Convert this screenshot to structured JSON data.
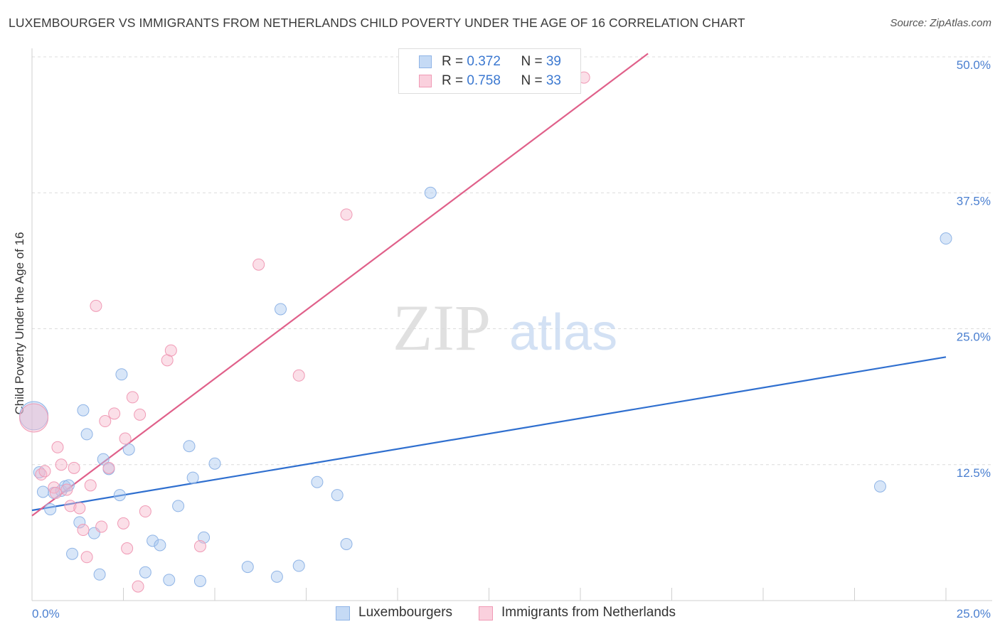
{
  "header": {
    "title": "LUXEMBOURGER VS IMMIGRANTS FROM NETHERLANDS CHILD POVERTY UNDER THE AGE OF 16 CORRELATION CHART",
    "source": "Source: ZipAtlas.com"
  },
  "watermark": {
    "zip": "ZIP",
    "atlas": "atlas"
  },
  "legend": {
    "r_label": "R = ",
    "n_label": "N = ",
    "rows": [
      {
        "r": "0.372",
        "n": "39",
        "color": "#a8c8f0"
      },
      {
        "r": "0.758",
        "n": "33",
        "color": "#f6b8cb"
      }
    ]
  },
  "bottom_legend": [
    {
      "label": "Luxembourgers",
      "color": "#a8c8f0"
    },
    {
      "label": "Immigrants from Netherlands",
      "color": "#f6b8cb"
    }
  ],
  "chart_data": {
    "type": "scatter",
    "title": "LUXEMBOURGER VS IMMIGRANTS FROM NETHERLANDS CHILD POVERTY UNDER THE AGE OF 16 CORRELATION CHART",
    "xlabel": "",
    "ylabel": "Child Poverty Under the Age of 16",
    "xlim": [
      0,
      25
    ],
    "ylim": [
      0,
      50
    ],
    "x_tick_labels": [
      "0.0%",
      "25.0%"
    ],
    "y_ticks": [
      12.5,
      25.0,
      37.5,
      50.0
    ],
    "y_tick_labels": [
      "12.5%",
      "25.0%",
      "37.5%",
      "50.0%"
    ],
    "grid": true,
    "legend_position": "top-center",
    "series": [
      {
        "name": "Luxembourgers",
        "color": "#a8c8f0",
        "line_color": "#2f6fcf",
        "r": 0.372,
        "n": 39,
        "trend": {
          "x": [
            0,
            25
          ],
          "y": [
            8.3,
            22.4
          ]
        },
        "points": [
          {
            "x": 0.05,
            "y": 17.0,
            "big": true
          },
          {
            "x": 0.2,
            "y": 11.8
          },
          {
            "x": 0.3,
            "y": 10.0
          },
          {
            "x": 0.5,
            "y": 8.4
          },
          {
            "x": 0.6,
            "y": 9.9
          },
          {
            "x": 0.8,
            "y": 10.1
          },
          {
            "x": 0.9,
            "y": 10.5
          },
          {
            "x": 1.0,
            "y": 10.6
          },
          {
            "x": 1.1,
            "y": 4.3
          },
          {
            "x": 1.3,
            "y": 7.2
          },
          {
            "x": 1.4,
            "y": 17.5
          },
          {
            "x": 1.5,
            "y": 15.3
          },
          {
            "x": 1.7,
            "y": 6.2
          },
          {
            "x": 1.85,
            "y": 2.4
          },
          {
            "x": 1.95,
            "y": 13.0
          },
          {
            "x": 2.1,
            "y": 12.1
          },
          {
            "x": 2.4,
            "y": 9.7
          },
          {
            "x": 2.45,
            "y": 20.8
          },
          {
            "x": 2.65,
            "y": 13.9
          },
          {
            "x": 3.1,
            "y": 2.6
          },
          {
            "x": 3.3,
            "y": 5.5
          },
          {
            "x": 3.5,
            "y": 5.1
          },
          {
            "x": 3.75,
            "y": 1.9
          },
          {
            "x": 4.0,
            "y": 8.7
          },
          {
            "x": 4.3,
            "y": 14.2
          },
          {
            "x": 4.4,
            "y": 11.3
          },
          {
            "x": 4.6,
            "y": 1.8
          },
          {
            "x": 4.7,
            "y": 5.8
          },
          {
            "x": 5.0,
            "y": 12.6
          },
          {
            "x": 5.9,
            "y": 3.1
          },
          {
            "x": 6.7,
            "y": 2.2
          },
          {
            "x": 6.8,
            "y": 26.8
          },
          {
            "x": 7.3,
            "y": 3.2
          },
          {
            "x": 7.8,
            "y": 10.9
          },
          {
            "x": 8.35,
            "y": 9.7
          },
          {
            "x": 8.6,
            "y": 5.2
          },
          {
            "x": 10.9,
            "y": 37.5
          },
          {
            "x": 23.2,
            "y": 10.5
          },
          {
            "x": 25.0,
            "y": 33.3
          }
        ]
      },
      {
        "name": "Immigrants from Netherlands",
        "color": "#f6b8cb",
        "line_color": "#e0608a",
        "r": 0.758,
        "n": 33,
        "trend": {
          "x": [
            0,
            16.85
          ],
          "y": [
            7.8,
            50.3
          ]
        },
        "points": [
          {
            "x": 0.05,
            "y": 16.8,
            "big": true
          },
          {
            "x": 0.25,
            "y": 11.6
          },
          {
            "x": 0.35,
            "y": 11.9
          },
          {
            "x": 0.6,
            "y": 10.4
          },
          {
            "x": 0.65,
            "y": 9.9
          },
          {
            "x": 0.7,
            "y": 14.1
          },
          {
            "x": 0.8,
            "y": 12.5
          },
          {
            "x": 0.95,
            "y": 10.2
          },
          {
            "x": 1.05,
            "y": 8.7
          },
          {
            "x": 1.15,
            "y": 12.2
          },
          {
            "x": 1.3,
            "y": 8.5
          },
          {
            "x": 1.4,
            "y": 6.5
          },
          {
            "x": 1.5,
            "y": 4.0
          },
          {
            "x": 1.6,
            "y": 10.6
          },
          {
            "x": 1.75,
            "y": 27.1
          },
          {
            "x": 1.9,
            "y": 6.8
          },
          {
            "x": 2.0,
            "y": 16.5
          },
          {
            "x": 2.1,
            "y": 12.2
          },
          {
            "x": 2.25,
            "y": 17.2
          },
          {
            "x": 2.5,
            "y": 7.1
          },
          {
            "x": 2.55,
            "y": 14.9
          },
          {
            "x": 2.6,
            "y": 4.8
          },
          {
            "x": 2.75,
            "y": 18.7
          },
          {
            "x": 2.9,
            "y": 1.3
          },
          {
            "x": 2.95,
            "y": 17.1
          },
          {
            "x": 3.1,
            "y": 8.2
          },
          {
            "x": 3.7,
            "y": 22.1
          },
          {
            "x": 3.8,
            "y": 23.0
          },
          {
            "x": 4.6,
            "y": 5.0
          },
          {
            "x": 6.2,
            "y": 30.9
          },
          {
            "x": 7.3,
            "y": 20.7
          },
          {
            "x": 8.6,
            "y": 35.5
          },
          {
            "x": 15.1,
            "y": 48.1
          }
        ]
      }
    ]
  }
}
